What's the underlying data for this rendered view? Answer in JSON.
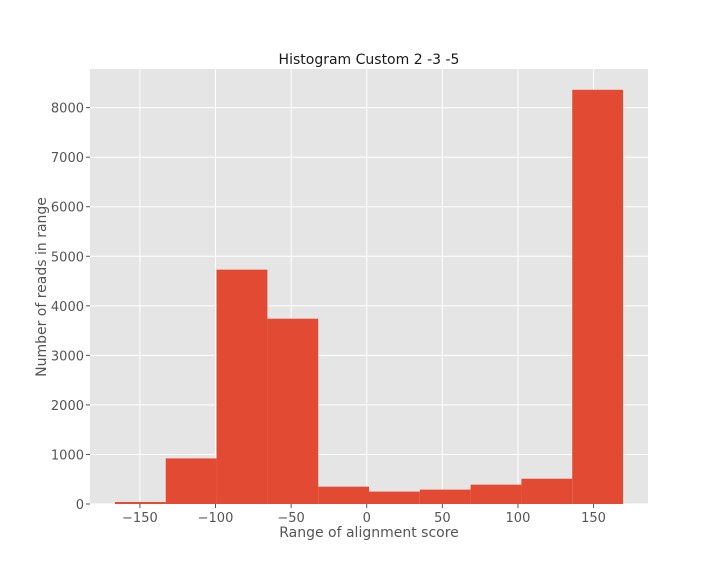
{
  "chart_data": {
    "type": "bar",
    "title": "Histogram Custom 2 -3 -5",
    "xlabel": "Range of alignment score",
    "ylabel": "Number of reads in range",
    "bin_edges": [
      -166.5,
      -132.9,
      -99.3,
      -65.7,
      -32.1,
      1.5,
      35.1,
      68.7,
      102.3,
      135.9,
      169.5
    ],
    "values": [
      40,
      920,
      4730,
      3740,
      350,
      250,
      290,
      390,
      510,
      8360
    ],
    "xlim": [
      -183,
      186
    ],
    "ylim": [
      0,
      8780
    ],
    "xticks": [
      -150,
      -100,
      -50,
      0,
      50,
      100,
      150
    ],
    "xtick_labels": [
      "−150",
      "−100",
      "−50",
      "0",
      "50",
      "100",
      "150"
    ],
    "yticks": [
      0,
      1000,
      2000,
      3000,
      4000,
      5000,
      6000,
      7000,
      8000
    ],
    "ytick_labels": [
      "0",
      "1000",
      "2000",
      "3000",
      "4000",
      "5000",
      "6000",
      "7000",
      "8000"
    ],
    "grid": true,
    "colors": {
      "bar": "#E24A33",
      "background": "#E5E5E5",
      "grid": "#FFFFFF"
    }
  }
}
